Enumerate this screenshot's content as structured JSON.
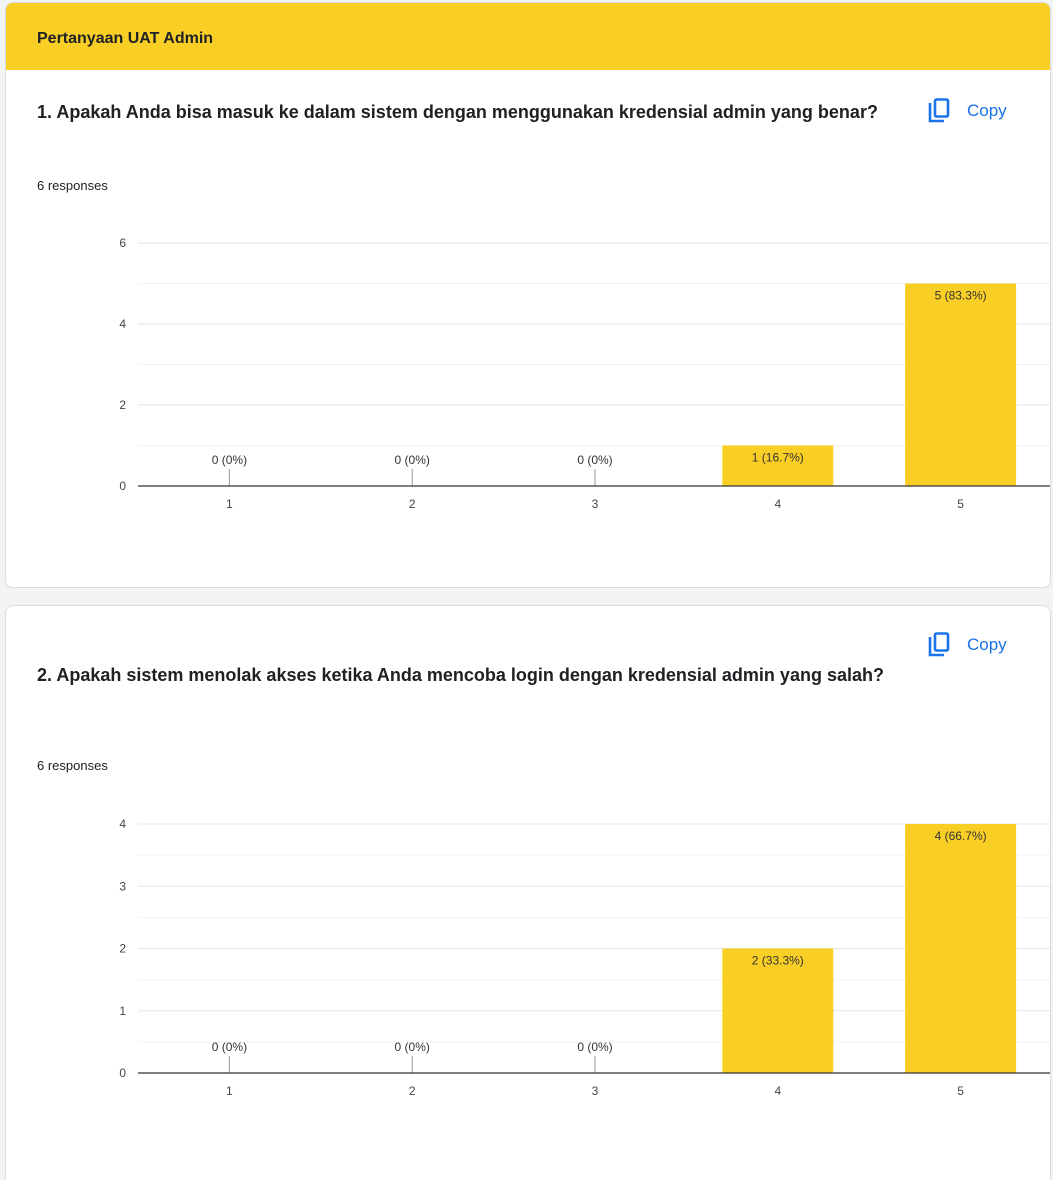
{
  "section": {
    "title": "Pertanyaan UAT Admin"
  },
  "copy_label": "Copy",
  "colors": {
    "bar": "#f9cf26",
    "header": "#f9cf26",
    "link": "#1a73e8"
  },
  "questions": [
    {
      "title": "1. Apakah Anda bisa masuk ke dalam sistem dengan menggunakan kredensial admin yang benar?",
      "responses": "6 responses"
    },
    {
      "title": "2. Apakah sistem menolak akses ketika Anda mencoba login dengan kredensial admin yang salah?",
      "responses": "6 responses"
    }
  ],
  "chart_data": [
    {
      "type": "bar",
      "categories": [
        "1",
        "2",
        "3",
        "4",
        "5"
      ],
      "values": [
        0,
        0,
        0,
        1,
        5
      ],
      "data_labels": [
        "0 (0%)",
        "0 (0%)",
        "0 (0%)",
        "1 (16.7%)",
        "5 (83.3%)"
      ],
      "ylim": [
        0,
        6
      ],
      "yticks": [
        0,
        2,
        4,
        6
      ],
      "grid": true,
      "legend": "none"
    },
    {
      "type": "bar",
      "categories": [
        "1",
        "2",
        "3",
        "4",
        "5"
      ],
      "values": [
        0,
        0,
        0,
        2,
        4
      ],
      "data_labels": [
        "0 (0%)",
        "0 (0%)",
        "0 (0%)",
        "2 (33.3%)",
        "4 (66.7%)"
      ],
      "ylim": [
        0,
        4
      ],
      "yticks": [
        0,
        1,
        2,
        3,
        4
      ],
      "grid": true,
      "legend": "none"
    }
  ]
}
